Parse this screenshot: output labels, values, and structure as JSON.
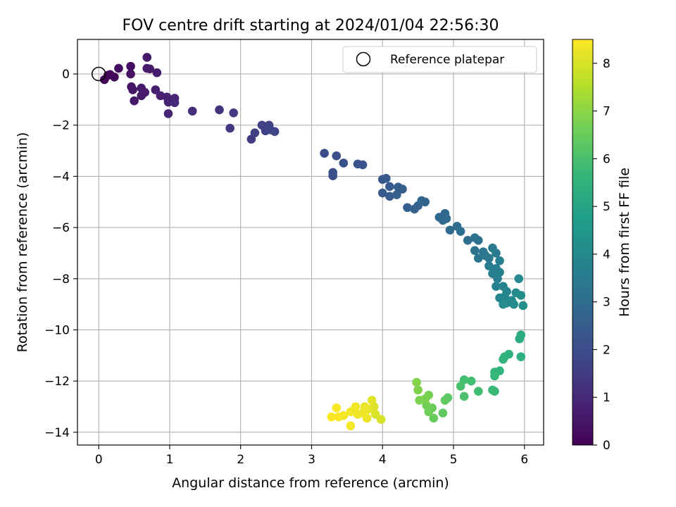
{
  "chart_data": {
    "type": "scatter",
    "title": "FOV centre drift starting at 2024/01/04 22:56:30",
    "xlabel": "Angular distance from reference (arcmin)",
    "ylabel": "Rotation from reference (arcmin)",
    "xlim": [
      -0.3,
      6.27
    ],
    "ylim": [
      -14.5,
      1.35
    ],
    "xticks": [
      0,
      1,
      2,
      3,
      4,
      5,
      6
    ],
    "yticks": [
      0,
      -2,
      -4,
      -6,
      -8,
      -10,
      -12,
      -14
    ],
    "grid": true,
    "legend": {
      "location": "top-right",
      "entries": [
        "Reference platepar"
      ]
    },
    "reference_point": {
      "x": 0,
      "y": 0,
      "label": "Reference platepar"
    },
    "colorbar": {
      "label": "Hours from first FF file",
      "range": [
        0,
        8.5
      ],
      "ticks": [
        0,
        1,
        2,
        3,
        4,
        5,
        6,
        7,
        8
      ],
      "colormap": "viridis"
    },
    "points": [
      {
        "x": 0.13,
        "y": -0.05,
        "h": 0.05
      },
      {
        "x": 0.08,
        "y": -0.22,
        "h": 0.1
      },
      {
        "x": 0.16,
        "y": -0.02,
        "h": 0.15
      },
      {
        "x": 0.22,
        "y": -0.12,
        "h": 0.2
      },
      {
        "x": 0.28,
        "y": 0.22,
        "h": 0.3
      },
      {
        "x": 0.45,
        "y": 0.3,
        "h": 0.35
      },
      {
        "x": 0.45,
        "y": 0.0,
        "h": 0.4
      },
      {
        "x": 0.46,
        "y": -0.5,
        "h": 0.45
      },
      {
        "x": 0.48,
        "y": -0.62,
        "h": 0.5
      },
      {
        "x": 0.5,
        "y": -1.05,
        "h": 0.55
      },
      {
        "x": 0.6,
        "y": -0.85,
        "h": 0.6
      },
      {
        "x": 0.6,
        "y": -0.55,
        "h": 0.6
      },
      {
        "x": 0.65,
        "y": -0.72,
        "h": 0.65
      },
      {
        "x": 0.68,
        "y": 0.65,
        "h": 0.55
      },
      {
        "x": 0.68,
        "y": 0.22,
        "h": 0.6
      },
      {
        "x": 0.72,
        "y": 0.2,
        "h": 0.65
      },
      {
        "x": 0.8,
        "y": -0.62,
        "h": 0.7
      },
      {
        "x": 0.82,
        "y": 0.05,
        "h": 0.7
      },
      {
        "x": 0.87,
        "y": -0.85,
        "h": 0.75
      },
      {
        "x": 0.96,
        "y": -0.9,
        "h": 0.8
      },
      {
        "x": 0.98,
        "y": -1.1,
        "h": 0.85
      },
      {
        "x": 0.98,
        "y": -1.55,
        "h": 0.9
      },
      {
        "x": 1.07,
        "y": -0.95,
        "h": 0.9
      },
      {
        "x": 1.07,
        "y": -1.12,
        "h": 0.95
      },
      {
        "x": 1.32,
        "y": -1.45,
        "h": 1.1
      },
      {
        "x": 1.7,
        "y": -1.4,
        "h": 1.3
      },
      {
        "x": 1.85,
        "y": -2.12,
        "h": 1.4
      },
      {
        "x": 1.9,
        "y": -1.52,
        "h": 1.45
      },
      {
        "x": 2.15,
        "y": -2.55,
        "h": 1.55
      },
      {
        "x": 2.2,
        "y": -2.3,
        "h": 1.6
      },
      {
        "x": 2.3,
        "y": -2.0,
        "h": 1.65
      },
      {
        "x": 2.35,
        "y": -2.22,
        "h": 1.7
      },
      {
        "x": 2.4,
        "y": -2.0,
        "h": 1.7
      },
      {
        "x": 2.42,
        "y": -2.18,
        "h": 1.75
      },
      {
        "x": 2.48,
        "y": -2.25,
        "h": 1.8
      },
      {
        "x": 3.18,
        "y": -3.1,
        "h": 2.05
      },
      {
        "x": 3.3,
        "y": -3.85,
        "h": 2.1
      },
      {
        "x": 3.3,
        "y": -3.98,
        "h": 2.1
      },
      {
        "x": 3.35,
        "y": -3.2,
        "h": 2.1
      },
      {
        "x": 3.45,
        "y": -3.48,
        "h": 2.15
      },
      {
        "x": 3.65,
        "y": -3.52,
        "h": 2.2
      },
      {
        "x": 3.72,
        "y": -3.55,
        "h": 2.25
      },
      {
        "x": 4.0,
        "y": -4.12,
        "h": 2.35
      },
      {
        "x": 4.05,
        "y": -4.08,
        "h": 2.4
      },
      {
        "x": 4.0,
        "y": -4.65,
        "h": 2.4
      },
      {
        "x": 4.1,
        "y": -4.78,
        "h": 2.45
      },
      {
        "x": 4.1,
        "y": -4.4,
        "h": 2.45
      },
      {
        "x": 4.22,
        "y": -4.42,
        "h": 2.5
      },
      {
        "x": 4.28,
        "y": -4.5,
        "h": 2.5
      },
      {
        "x": 4.2,
        "y": -4.72,
        "h": 2.55
      },
      {
        "x": 4.35,
        "y": -5.22,
        "h": 2.6
      },
      {
        "x": 4.45,
        "y": -5.28,
        "h": 2.65
      },
      {
        "x": 4.5,
        "y": -5.15,
        "h": 2.65
      },
      {
        "x": 4.55,
        "y": -4.95,
        "h": 2.7
      },
      {
        "x": 4.6,
        "y": -5.0,
        "h": 2.75
      },
      {
        "x": 4.8,
        "y": -5.6,
        "h": 2.8
      },
      {
        "x": 4.88,
        "y": -5.45,
        "h": 2.85
      },
      {
        "x": 4.9,
        "y": -5.65,
        "h": 2.9
      },
      {
        "x": 4.85,
        "y": -5.72,
        "h": 2.9
      },
      {
        "x": 4.95,
        "y": -6.1,
        "h": 2.95
      },
      {
        "x": 5.05,
        "y": -5.95,
        "h": 3.0
      },
      {
        "x": 5.1,
        "y": -6.15,
        "h": 3.05
      },
      {
        "x": 5.2,
        "y": -6.5,
        "h": 3.1
      },
      {
        "x": 5.3,
        "y": -6.4,
        "h": 3.15
      },
      {
        "x": 5.35,
        "y": -6.5,
        "h": 3.2
      },
      {
        "x": 5.3,
        "y": -6.9,
        "h": 3.25
      },
      {
        "x": 5.35,
        "y": -7.2,
        "h": 3.3
      },
      {
        "x": 5.42,
        "y": -6.95,
        "h": 3.35
      },
      {
        "x": 5.45,
        "y": -7.1,
        "h": 3.4
      },
      {
        "x": 5.5,
        "y": -7.2,
        "h": 3.45
      },
      {
        "x": 5.55,
        "y": -6.8,
        "h": 3.45
      },
      {
        "x": 5.6,
        "y": -7.0,
        "h": 3.5
      },
      {
        "x": 5.5,
        "y": -7.5,
        "h": 3.55
      },
      {
        "x": 5.55,
        "y": -7.8,
        "h": 3.6
      },
      {
        "x": 5.6,
        "y": -7.6,
        "h": 3.6
      },
      {
        "x": 5.62,
        "y": -8.0,
        "h": 3.65
      },
      {
        "x": 5.65,
        "y": -7.3,
        "h": 3.65
      },
      {
        "x": 5.65,
        "y": -7.75,
        "h": 3.7
      },
      {
        "x": 5.6,
        "y": -8.3,
        "h": 3.75
      },
      {
        "x": 5.7,
        "y": -8.3,
        "h": 3.8
      },
      {
        "x": 5.75,
        "y": -8.5,
        "h": 3.85
      },
      {
        "x": 5.65,
        "y": -8.75,
        "h": 3.85
      },
      {
        "x": 5.72,
        "y": -8.7,
        "h": 3.9
      },
      {
        "x": 5.75,
        "y": -8.95,
        "h": 3.95
      },
      {
        "x": 5.82,
        "y": -8.85,
        "h": 4.0
      },
      {
        "x": 5.88,
        "y": -8.55,
        "h": 4.05
      },
      {
        "x": 5.7,
        "y": -9.0,
        "h": 4.1
      },
      {
        "x": 5.85,
        "y": -9.0,
        "h": 4.1
      },
      {
        "x": 5.92,
        "y": -8.0,
        "h": 4.05
      },
      {
        "x": 5.95,
        "y": -8.65,
        "h": 4.15
      },
      {
        "x": 5.98,
        "y": -9.05,
        "h": 4.2
      },
      {
        "x": 5.95,
        "y": -10.2,
        "h": 5.2
      },
      {
        "x": 5.93,
        "y": -10.35,
        "h": 5.25
      },
      {
        "x": 5.95,
        "y": -11.05,
        "h": 5.35
      },
      {
        "x": 5.78,
        "y": -10.95,
        "h": 5.4
      },
      {
        "x": 5.72,
        "y": -11.05,
        "h": 5.45
      },
      {
        "x": 5.7,
        "y": -11.15,
        "h": 5.5
      },
      {
        "x": 5.65,
        "y": -11.6,
        "h": 5.55
      },
      {
        "x": 5.58,
        "y": -11.65,
        "h": 5.6
      },
      {
        "x": 5.58,
        "y": -11.8,
        "h": 5.65
      },
      {
        "x": 5.58,
        "y": -12.4,
        "h": 5.7
      },
      {
        "x": 5.55,
        "y": -12.35,
        "h": 5.75
      },
      {
        "x": 5.35,
        "y": -12.4,
        "h": 5.85
      },
      {
        "x": 5.25,
        "y": -12.0,
        "h": 5.9
      },
      {
        "x": 5.15,
        "y": -11.95,
        "h": 5.95
      },
      {
        "x": 5.1,
        "y": -12.2,
        "h": 6.0
      },
      {
        "x": 5.15,
        "y": -12.6,
        "h": 6.05
      },
      {
        "x": 4.92,
        "y": -12.65,
        "h": 6.3
      },
      {
        "x": 4.88,
        "y": -12.75,
        "h": 6.35
      },
      {
        "x": 4.85,
        "y": -13.25,
        "h": 6.4
      },
      {
        "x": 4.72,
        "y": -13.45,
        "h": 6.5
      },
      {
        "x": 4.7,
        "y": -13.05,
        "h": 6.55
      },
      {
        "x": 4.65,
        "y": -13.2,
        "h": 6.6
      },
      {
        "x": 4.62,
        "y": -12.95,
        "h": 6.65
      },
      {
        "x": 4.65,
        "y": -12.55,
        "h": 6.7
      },
      {
        "x": 4.6,
        "y": -12.7,
        "h": 6.75
      },
      {
        "x": 4.52,
        "y": -12.75,
        "h": 6.8
      },
      {
        "x": 4.5,
        "y": -12.35,
        "h": 6.85
      },
      {
        "x": 4.48,
        "y": -12.05,
        "h": 6.9
      },
      {
        "x": 3.98,
        "y": -13.5,
        "h": 8.0
      },
      {
        "x": 3.9,
        "y": -13.3,
        "h": 8.05
      },
      {
        "x": 3.88,
        "y": -13.0,
        "h": 8.1
      },
      {
        "x": 3.85,
        "y": -12.75,
        "h": 8.15
      },
      {
        "x": 3.8,
        "y": -13.1,
        "h": 8.2
      },
      {
        "x": 3.75,
        "y": -13.0,
        "h": 8.25
      },
      {
        "x": 3.72,
        "y": -13.25,
        "h": 8.3
      },
      {
        "x": 3.65,
        "y": -13.3,
        "h": 8.3
      },
      {
        "x": 3.62,
        "y": -13.0,
        "h": 8.35
      },
      {
        "x": 3.55,
        "y": -13.2,
        "h": 8.35
      },
      {
        "x": 3.55,
        "y": -13.75,
        "h": 8.4
      },
      {
        "x": 3.45,
        "y": -13.35,
        "h": 8.4
      },
      {
        "x": 3.38,
        "y": -13.4,
        "h": 8.45
      },
      {
        "x": 3.35,
        "y": -13.05,
        "h": 8.45
      },
      {
        "x": 3.28,
        "y": -13.4,
        "h": 8.5
      },
      {
        "x": 3.78,
        "y": -13.45,
        "h": 8.3
      }
    ]
  }
}
